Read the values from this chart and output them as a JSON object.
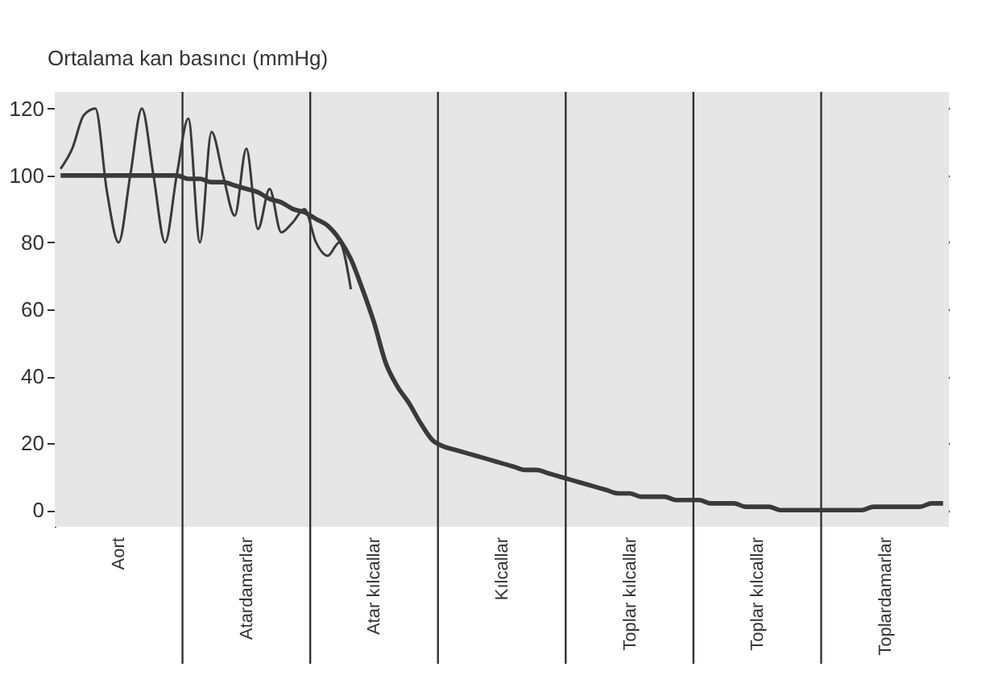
{
  "chart_data": {
    "type": "line",
    "ylabel": "Ortalama kan basıncı (mmHg)",
    "categories": [
      null,
      null,
      null,
      null,
      null,
      "Aort",
      null,
      null,
      null,
      null,
      null,
      null,
      null,
      null,
      null,
      null,
      "Atardamarlar",
      null,
      null,
      null,
      null,
      null,
      null,
      null,
      null,
      null,
      null,
      "Atar kılcallar",
      null,
      null,
      null,
      null,
      null,
      null,
      null,
      null,
      null,
      null,
      "Kılcallar",
      null,
      null,
      null,
      null,
      null,
      null,
      null,
      null,
      null,
      null,
      "Toplar kılcallar",
      null,
      null,
      null,
      null,
      null,
      null,
      null,
      null,
      null,
      null,
      "Toplar kılcallar",
      null,
      null,
      null,
      null,
      null,
      null,
      null,
      null,
      null,
      null,
      "Toplardamarlar",
      null,
      null,
      null,
      null,
      null
    ],
    "ylim": [
      -5,
      125
    ],
    "yticks": [
      0,
      20,
      40,
      60,
      80,
      100,
      120
    ],
    "grid": true,
    "marker": "none",
    "line_style": "solid",
    "series": [
      {
        "color": "#3a3a3a",
        "values": [
          102,
          108,
          118,
          120,
          95,
          80,
          100,
          120,
          100,
          80,
          100,
          117,
          80,
          113,
          100,
          88,
          108,
          84,
          96,
          83,
          86,
          90,
          80,
          76,
          80,
          66,
          null,
          null,
          null,
          null,
          null,
          null,
          null,
          null,
          null,
          null,
          null,
          null,
          null,
          null,
          null,
          null,
          null,
          null,
          null,
          null,
          null,
          null,
          null,
          null,
          null,
          null,
          null,
          null,
          null,
          null,
          null,
          null,
          null,
          null,
          null,
          null,
          null,
          null,
          null,
          null,
          null,
          null,
          null,
          null,
          null,
          null,
          null,
          null,
          null,
          null,
          null
        ]
      },
      {
        "color": "#3a3a3a",
        "values": [
          100,
          100,
          100,
          100,
          100,
          100,
          100,
          100,
          100,
          100,
          100,
          99,
          99,
          98,
          98,
          97,
          96,
          95,
          93,
          92,
          90,
          89,
          87,
          85,
          81,
          75,
          66,
          56,
          44,
          37,
          32,
          26,
          21,
          19,
          18,
          17,
          16,
          15,
          14,
          13,
          12,
          12,
          11,
          10,
          9,
          8,
          7,
          6,
          5,
          5,
          4,
          4,
          4,
          3,
          3,
          3,
          2,
          2,
          2,
          1,
          1,
          1,
          0,
          0,
          0,
          0,
          0,
          0,
          0,
          0,
          1,
          1,
          1,
          1,
          1,
          2,
          2
        ]
      }
    ]
  }
}
